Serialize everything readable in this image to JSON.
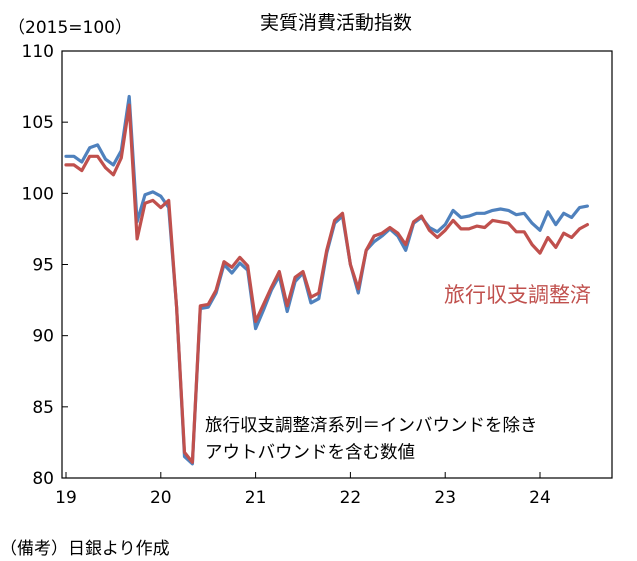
{
  "chart_data": {
    "type": "line",
    "title": "実質消費活動指数",
    "unit_label": "（2015=100）",
    "x_tick_labels": [
      "19",
      "20",
      "21",
      "22",
      "23",
      "24"
    ],
    "y_ticks": [
      80,
      85,
      90,
      95,
      100,
      105,
      110
    ],
    "ylim": [
      80,
      110
    ],
    "grid": false,
    "annotation": [
      "旅行収支調整済系列＝インバウンドを除き",
      "アウトバウンドを含む数値"
    ],
    "series_label": "旅行収支調整済",
    "source": "（備考）日銀より作成",
    "x": [
      "2019-01",
      "2019-02",
      "2019-03",
      "2019-04",
      "2019-05",
      "2019-06",
      "2019-07",
      "2019-08",
      "2019-09",
      "2019-10",
      "2019-11",
      "2019-12",
      "2020-01",
      "2020-02",
      "2020-03",
      "2020-04",
      "2020-05",
      "2020-06",
      "2020-07",
      "2020-08",
      "2020-09",
      "2020-10",
      "2020-11",
      "2020-12",
      "2021-01",
      "2021-02",
      "2021-03",
      "2021-04",
      "2021-05",
      "2021-06",
      "2021-07",
      "2021-08",
      "2021-09",
      "2021-10",
      "2021-11",
      "2021-12",
      "2022-01",
      "2022-02",
      "2022-03",
      "2022-04",
      "2022-05",
      "2022-06",
      "2022-07",
      "2022-08",
      "2022-09",
      "2022-10",
      "2022-11",
      "2022-12",
      "2023-01",
      "2023-02",
      "2023-03",
      "2023-04",
      "2023-05",
      "2023-06",
      "2023-07",
      "2023-08",
      "2023-09",
      "2023-10",
      "2023-11",
      "2023-12",
      "2024-01",
      "2024-02",
      "2024-03",
      "2024-04",
      "2024-05",
      "2024-06",
      "2024-07"
    ],
    "series": [
      {
        "color": "#4f81bd",
        "values": [
          102.6,
          102.6,
          102.2,
          103.2,
          103.4,
          102.4,
          102.0,
          103.0,
          106.8,
          98.0,
          99.9,
          100.1,
          99.8,
          99.0,
          92.0,
          81.5,
          81.0,
          91.9,
          92.0,
          93.0,
          95.0,
          94.4,
          95.1,
          94.6,
          90.5,
          91.8,
          93.2,
          94.2,
          91.7,
          93.8,
          94.4,
          92.3,
          92.6,
          95.8,
          97.9,
          98.4,
          95.0,
          93.0,
          96.0,
          96.6,
          97.0,
          97.5,
          97.0,
          96.0,
          97.9,
          98.3,
          97.6,
          97.3,
          97.8,
          98.8,
          98.3,
          98.4,
          98.6,
          98.6,
          98.8,
          98.9,
          98.8,
          98.5,
          98.6,
          97.9,
          97.4,
          98.7,
          97.8,
          98.6,
          98.3,
          99.0,
          99.1
        ]
      },
      {
        "name": "旅行収支調整済",
        "color": "#c0504d",
        "values": [
          102.0,
          102.0,
          101.6,
          102.6,
          102.6,
          101.8,
          101.3,
          102.5,
          106.2,
          96.8,
          99.3,
          99.5,
          99.0,
          99.5,
          92.0,
          81.8,
          81.1,
          92.1,
          92.2,
          93.2,
          95.2,
          94.8,
          95.5,
          94.9,
          91.0,
          92.2,
          93.4,
          94.5,
          92.1,
          94.1,
          94.5,
          92.7,
          93.0,
          96.0,
          98.1,
          98.6,
          95.0,
          93.3,
          96.0,
          97.0,
          97.2,
          97.6,
          97.2,
          96.4,
          98.0,
          98.4,
          97.4,
          96.9,
          97.4,
          98.1,
          97.5,
          97.5,
          97.7,
          97.6,
          98.1,
          98.0,
          97.9,
          97.3,
          97.3,
          96.4,
          95.8,
          96.9,
          96.2,
          97.2,
          96.9,
          97.5,
          97.8
        ]
      }
    ]
  }
}
